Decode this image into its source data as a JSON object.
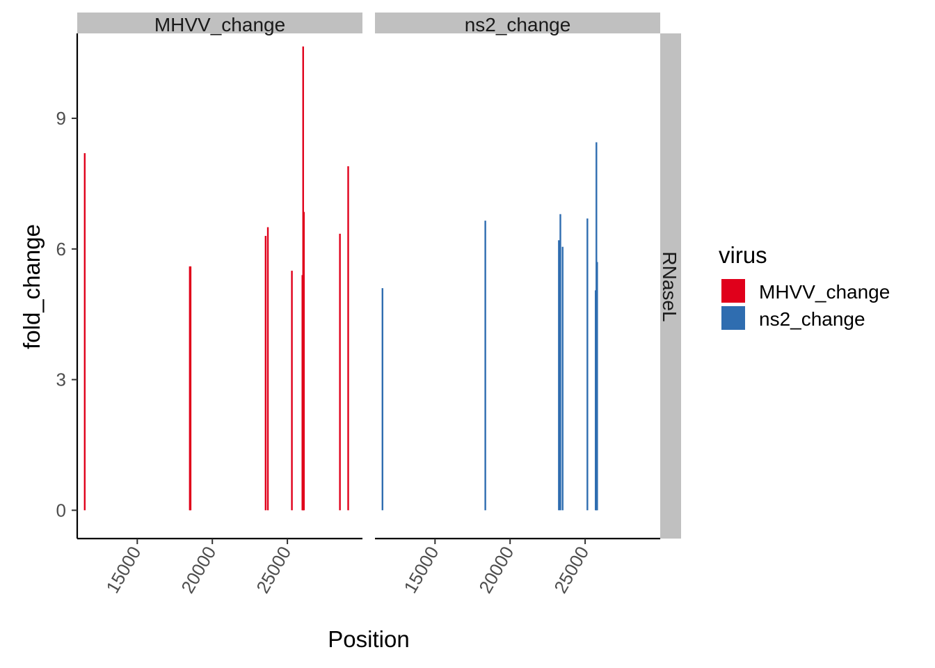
{
  "chart_data": {
    "type": "bar",
    "title": "",
    "xlabel": "Position",
    "ylabel": "fold_change",
    "xlim": [
      11000,
      30000
    ],
    "ylim": [
      -0.65,
      10.95
    ],
    "x_ticks": [
      15000,
      20000,
      25000
    ],
    "x_tick_labels": [
      "15000",
      "20000",
      "25000"
    ],
    "y_ticks": [
      0,
      3,
      6,
      9
    ],
    "y_tick_labels": [
      "0",
      "3",
      "6",
      "9"
    ],
    "row_facet": "RNaseL",
    "grid": false,
    "legend": {
      "title": "virus",
      "placement": "right",
      "entries": [
        "MHVV_change",
        "ns2_change"
      ]
    },
    "colors": {
      "MHVV_change": "#E0001B",
      "ns2_change": "#2F6DB0",
      "strip": "#C0C0C0"
    },
    "panels": [
      {
        "label": "MHVV_change",
        "series": "MHVV_change",
        "x": [
          11500,
          18500,
          18550,
          23550,
          23700,
          25300,
          26000,
          26050,
          26100,
          28500,
          29050
        ],
        "values": [
          8.2,
          5.6,
          5.6,
          6.3,
          6.5,
          5.5,
          5.4,
          10.65,
          6.85,
          6.35,
          7.9
        ]
      },
      {
        "label": "ns2_change",
        "series": "ns2_change",
        "x": [
          11500,
          18350,
          23250,
          23350,
          23500,
          25150,
          25700,
          25750,
          25800
        ],
        "values": [
          5.1,
          6.65,
          6.2,
          6.8,
          6.05,
          6.7,
          5.05,
          8.45,
          5.7
        ]
      }
    ]
  }
}
